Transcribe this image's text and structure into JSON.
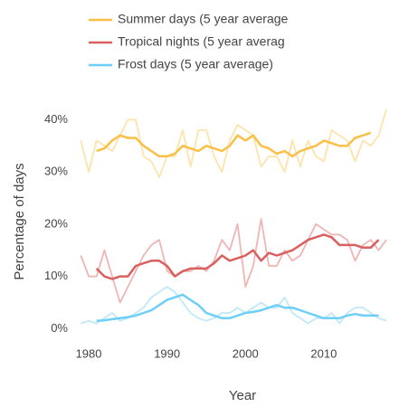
{
  "chart_data": {
    "type": "line",
    "x_label": "Year",
    "y_label": "Percentage of days",
    "xlim": [
      1977.8,
      2019.6
    ],
    "xticks": [
      1980,
      1990,
      2000,
      2010
    ],
    "ylim": [
      -1.5,
      43
    ],
    "yticks": [
      {
        "value": 0,
        "label": "0%"
      },
      {
        "value": 10,
        "label": "10%"
      },
      {
        "value": 20,
        "label": "20%"
      },
      {
        "value": 30,
        "label": "30%"
      },
      {
        "value": 40,
        "label": "40%"
      }
    ],
    "grid": false,
    "series": [
      {
        "color": "#fde3ac",
        "x": [
          1979,
          1980,
          1981,
          1982,
          1983,
          1984,
          1985,
          1986,
          1987,
          1988,
          1989,
          1990,
          1991,
          1992,
          1993,
          1994,
          1995,
          1996,
          1997,
          1998,
          1999,
          2000,
          2001,
          2002,
          2003,
          2004,
          2005,
          2006,
          2007,
          2008,
          2009,
          2010,
          2011,
          2012,
          2013,
          2014,
          2015,
          2016,
          2017,
          2018
        ],
        "values": [
          36,
          30,
          36,
          35,
          34,
          37,
          40,
          40,
          33,
          32,
          29,
          33,
          33,
          38,
          31,
          38,
          38,
          33,
          30,
          36,
          39,
          38,
          37,
          31,
          33,
          33,
          30,
          36,
          31,
          36,
          33,
          32,
          38,
          37,
          36,
          32,
          36,
          35,
          37,
          42
        ]
      },
      {
        "color": "#efb5b5",
        "x": [
          1979,
          1980,
          1981,
          1982,
          1983,
          1984,
          1985,
          1986,
          1987,
          1988,
          1989,
          1990,
          1991,
          1992,
          1993,
          1994,
          1995,
          1996,
          1997,
          1998,
          1999,
          2000,
          2001,
          2002,
          2003,
          2004,
          2005,
          2006,
          2007,
          2008,
          2009,
          2010,
          2011,
          2012,
          2013,
          2014,
          2015,
          2016,
          2017,
          2018
        ],
        "values": [
          14,
          10,
          10,
          15,
          10,
          5,
          8,
          11,
          14,
          16,
          17,
          11,
          10,
          11,
          11,
          12,
          11,
          13,
          17,
          15,
          20,
          8,
          12,
          21,
          12,
          12,
          15,
          13,
          14,
          17,
          20,
          19,
          18,
          18,
          17,
          13,
          16,
          17,
          15,
          17
        ]
      },
      {
        "color": "#bfe9fa",
        "x": [
          1979,
          1980,
          1981,
          1982,
          1983,
          1984,
          1985,
          1986,
          1987,
          1988,
          1989,
          1990,
          1991,
          1992,
          1993,
          1994,
          1995,
          1996,
          1997,
          1998,
          1999,
          2000,
          2001,
          2002,
          2003,
          2004,
          2005,
          2006,
          2007,
          2008,
          2009,
          2010,
          2011,
          2012,
          2013,
          2014,
          2015,
          2016,
          2017,
          2018
        ],
        "values": [
          1,
          1.5,
          1,
          2,
          3,
          1.5,
          2,
          3,
          4,
          6,
          7,
          8,
          7,
          5,
          3,
          2,
          1.5,
          2,
          3,
          3,
          4,
          3,
          4,
          5,
          4,
          4,
          6,
          3,
          2,
          1,
          2,
          2,
          3,
          1,
          3,
          4,
          4,
          3,
          2,
          1.5
        ]
      },
      {
        "name": "Summer days (5 year average",
        "color": "#fbbf45",
        "x": [
          1981,
          1982,
          1983,
          1984,
          1985,
          1986,
          1987,
          1988,
          1989,
          1990,
          1991,
          1992,
          1993,
          1994,
          1995,
          1996,
          1997,
          1998,
          1999,
          2000,
          2001,
          2002,
          2003,
          2004,
          2005,
          2006,
          2007,
          2008,
          2009,
          2010,
          2011,
          2012,
          2013,
          2014,
          2015,
          2016
        ],
        "values": [
          34,
          34.5,
          36,
          37,
          36.5,
          36.5,
          35,
          34,
          33,
          33,
          33.5,
          35,
          34.5,
          34,
          35,
          34.5,
          34,
          35,
          37,
          36,
          37,
          35,
          34.5,
          33.5,
          34,
          33,
          34,
          34.5,
          35,
          36,
          35.5,
          35,
          35,
          36.5,
          37,
          37.5
        ]
      },
      {
        "name": "Tropical nights (5 year averag",
        "color": "#d9605f",
        "x": [
          1981,
          1982,
          1983,
          1984,
          1985,
          1986,
          1987,
          1988,
          1989,
          1990,
          1991,
          1992,
          1993,
          1994,
          1995,
          1996,
          1997,
          1998,
          1999,
          2000,
          2001,
          2002,
          2003,
          2004,
          2005,
          2006,
          2007,
          2008,
          2009,
          2010,
          2011,
          2012,
          2013,
          2014,
          2015,
          2016,
          2017
        ],
        "values": [
          11.5,
          10,
          9.5,
          10,
          10,
          12,
          12.5,
          13,
          13,
          12,
          10,
          11,
          11.5,
          11.5,
          11.5,
          12.5,
          14,
          13,
          13.5,
          14,
          15,
          13,
          14.5,
          14,
          14.5,
          15,
          16,
          17,
          17.5,
          18,
          17.5,
          16,
          16,
          16,
          15.5,
          15.5,
          17
        ]
      },
      {
        "name": "Frost days (5 year average)",
        "color": "#6ecff6",
        "x": [
          1981,
          1982,
          1983,
          1984,
          1985,
          1986,
          1987,
          1988,
          1989,
          1990,
          1991,
          1992,
          1993,
          1994,
          1995,
          1996,
          1997,
          1998,
          1999,
          2000,
          2001,
          2002,
          2003,
          2004,
          2005,
          2006,
          2007,
          2008,
          2009,
          2010,
          2011,
          2012,
          2013,
          2014,
          2015,
          2016,
          2017
        ],
        "values": [
          1.5,
          1.6,
          1.8,
          2,
          2.2,
          2.5,
          3,
          3.5,
          4.5,
          5.5,
          6,
          6.5,
          5.5,
          4.5,
          3,
          2.5,
          2,
          2,
          2.5,
          3,
          3.2,
          3.5,
          4,
          4.5,
          4,
          4,
          3.5,
          3,
          2.5,
          2,
          2,
          2,
          2.5,
          2.8,
          2.5,
          2.5,
          2.5
        ]
      }
    ]
  }
}
